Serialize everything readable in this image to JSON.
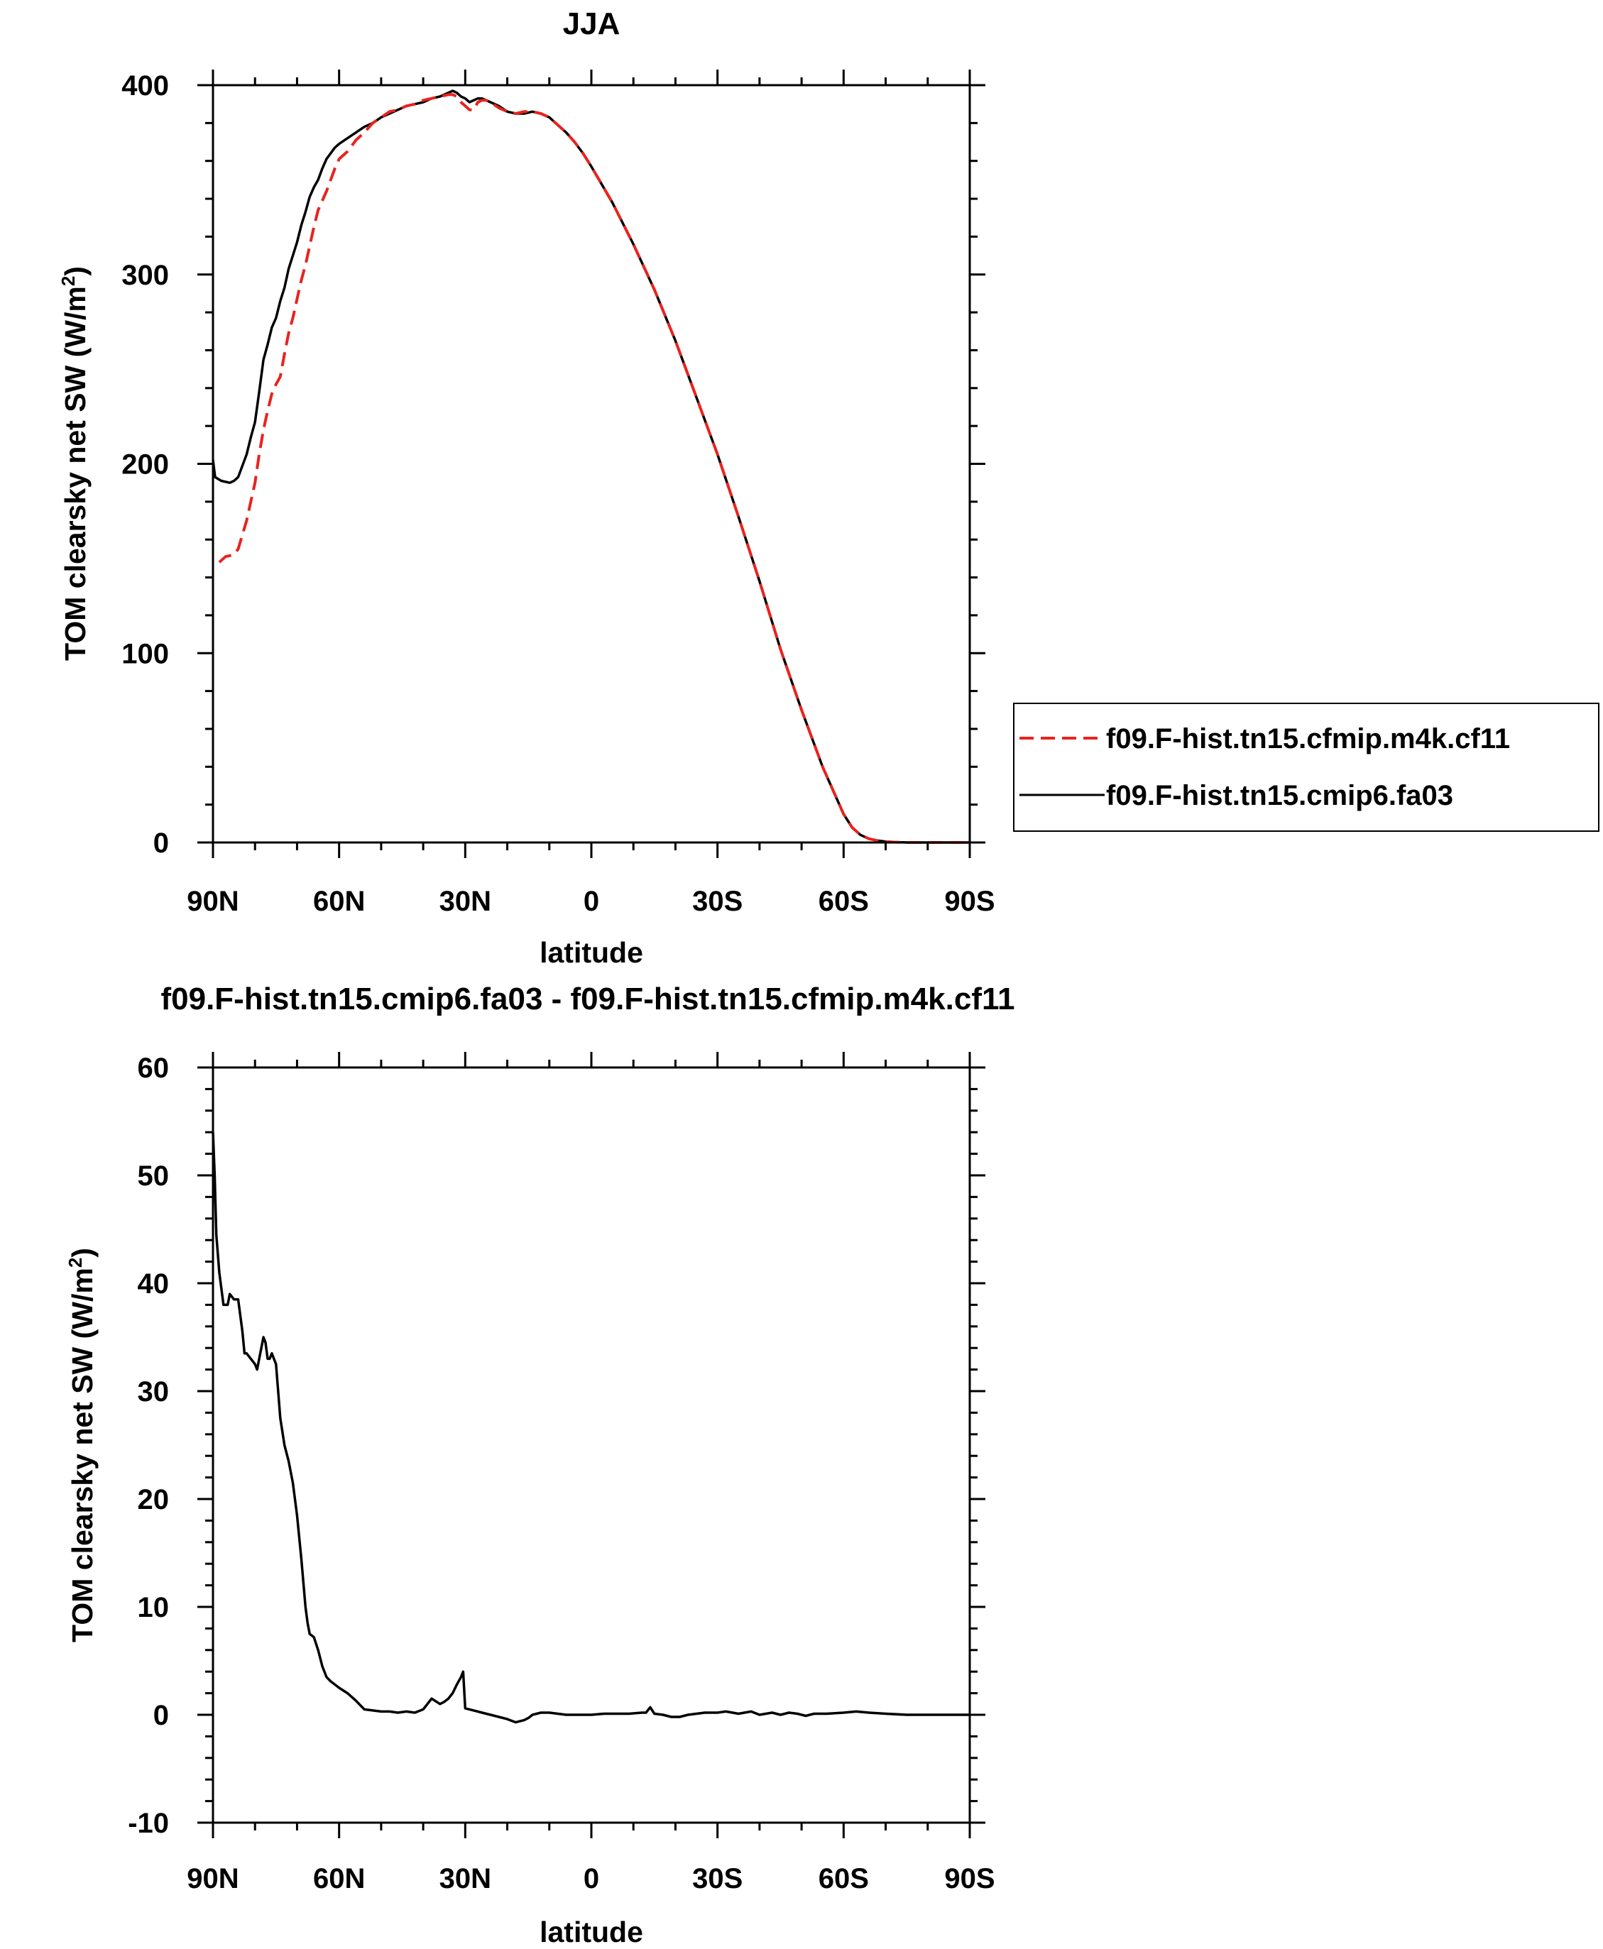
{
  "chart_data": [
    {
      "type": "line",
      "title": "JJA",
      "xlabel": "latitude",
      "ylabel": "TOM clearsky net SW (W/m",
      "ylabel_sup": "2",
      "ylabel_close": ")",
      "xlim": [
        90,
        -90
      ],
      "ylim": [
        0,
        400
      ],
      "xticks": [
        90,
        60,
        30,
        0,
        -30,
        -60,
        -90
      ],
      "xtick_labels": [
        "90N",
        "60N",
        "30N",
        "0",
        "30S",
        "60S",
        "90S"
      ],
      "yticks": [
        0,
        100,
        200,
        300,
        400
      ],
      "ytick_labels": [
        "0",
        "100",
        "200",
        "300",
        "400"
      ],
      "legend_position": "right",
      "series": [
        {
          "name": "f09.F-hist.tn15.cfmip.m4k.cf11",
          "color": "#e8231f",
          "dash": "dashed",
          "x": [
            88.5,
            87,
            85,
            84,
            82,
            81,
            80,
            79,
            78,
            77,
            76,
            75,
            74,
            73,
            72,
            71,
            70,
            69,
            68,
            67,
            66,
            65,
            64,
            63,
            62,
            61,
            60,
            58,
            56,
            54,
            52,
            50,
            48,
            46,
            44,
            42,
            40,
            38,
            36,
            34,
            33,
            32,
            31,
            30,
            29,
            28,
            27,
            26,
            25,
            24,
            22,
            20,
            18,
            16,
            14,
            12,
            10,
            8,
            6,
            4,
            2,
            0,
            -5,
            -10,
            -15,
            -20,
            -25,
            -30,
            -35,
            -40,
            -45,
            -50,
            -55,
            -60,
            -62,
            -64,
            -66,
            -68,
            -70,
            -72,
            -75,
            -78,
            -80,
            -85,
            -90
          ],
          "y": [
            148,
            151,
            152,
            155,
            170,
            180,
            190,
            205,
            218,
            228,
            237,
            242,
            246,
            258,
            269,
            277,
            287,
            297,
            305,
            315,
            325,
            334,
            339,
            344,
            350,
            356,
            361,
            365,
            371,
            375,
            380,
            383,
            386,
            387,
            389,
            390,
            392,
            393,
            394,
            395,
            395,
            394,
            391,
            389,
            387,
            387,
            391,
            392,
            392,
            391,
            388,
            386,
            385,
            386,
            386,
            385,
            383,
            379,
            375,
            370,
            364,
            357,
            338,
            316,
            292,
            265,
            235,
            205,
            172,
            138,
            102,
            70,
            40,
            15,
            8,
            4,
            2,
            1,
            0.5,
            0.2,
            0,
            0,
            0,
            0,
            0
          ]
        },
        {
          "name": "f09.F-hist.tn15.cmip6.fa03",
          "color": "#000000",
          "dash": "solid",
          "x": [
            90,
            89.5,
            88,
            86,
            85,
            84,
            82,
            81,
            80,
            79,
            78,
            77,
            76,
            75,
            74,
            73,
            72,
            71,
            70,
            69,
            68,
            67,
            66,
            65,
            64,
            63,
            62,
            61,
            60,
            58,
            56,
            54,
            52,
            50,
            48,
            46,
            44,
            42,
            40,
            38,
            36,
            34,
            33,
            32,
            31,
            30,
            29,
            28,
            27,
            26,
            25,
            24,
            22,
            20,
            18,
            16,
            14,
            12,
            10,
            8,
            6,
            4,
            2,
            0,
            -5,
            -10,
            -15,
            -20,
            -25,
            -30,
            -35,
            -40,
            -45,
            -50,
            -55,
            -60,
            -62,
            -64,
            -66,
            -68,
            -70,
            -72,
            -75,
            -78,
            -80,
            -85,
            -90
          ],
          "y": [
            202,
            193,
            191,
            190,
            191,
            193,
            205,
            214,
            222,
            238,
            255,
            263,
            272,
            277,
            286,
            293,
            303,
            310,
            317,
            326,
            333,
            341,
            346,
            350,
            356,
            361,
            364,
            367,
            369,
            372,
            375,
            378,
            380,
            383,
            385,
            387,
            389,
            390,
            391,
            393,
            394,
            396,
            397,
            396,
            394,
            393,
            391,
            392,
            393,
            393,
            392,
            391,
            389,
            386,
            385,
            385,
            386,
            385,
            383,
            379,
            375,
            370,
            364,
            357,
            338,
            316,
            292,
            265,
            235,
            205,
            172,
            138,
            102,
            70,
            40,
            15,
            8,
            4,
            2,
            1,
            0.5,
            0.2,
            0,
            0,
            0,
            0,
            0
          ]
        }
      ]
    },
    {
      "type": "line",
      "title": "f09.F-hist.tn15.cmip6.fa03 - f09.F-hist.tn15.cfmip.m4k.cf11",
      "xlabel": "latitude",
      "ylabel": "TOM clearsky net SW (W/m",
      "ylabel_sup": "2",
      "ylabel_close": ")",
      "xlim": [
        90,
        -90
      ],
      "ylim": [
        -10,
        60
      ],
      "xticks": [
        90,
        60,
        30,
        0,
        -30,
        -60,
        -90
      ],
      "xtick_labels": [
        "90N",
        "60N",
        "30N",
        "0",
        "30S",
        "60S",
        "90S"
      ],
      "yticks": [
        -10,
        0,
        10,
        20,
        30,
        40,
        50,
        60
      ],
      "ytick_labels": [
        "-10",
        "0",
        "10",
        "20",
        "30",
        "40",
        "50",
        "60"
      ],
      "series": [
        {
          "color": "#000000",
          "dash": "solid",
          "x": [
            90,
            89.6,
            89.2,
            88.5,
            87.5,
            86.5,
            86,
            85,
            84,
            83,
            82.5,
            82,
            81,
            80,
            79.5,
            79,
            78,
            77.5,
            77,
            76.5,
            76,
            75,
            74,
            73,
            72,
            71,
            70,
            69,
            68,
            67.5,
            67,
            66,
            65,
            64,
            63,
            62,
            61,
            60,
            58,
            56,
            55,
            54,
            52,
            50,
            48,
            46,
            44,
            42,
            40,
            38,
            36,
            35,
            34,
            33,
            32,
            31,
            30.5,
            30,
            29,
            28,
            26,
            24,
            22,
            20,
            18,
            16,
            15,
            14,
            13,
            12,
            10,
            8,
            6,
            4,
            2,
            0,
            -3,
            -6,
            -9,
            -12,
            -13,
            -14,
            -15,
            -17,
            -19,
            -21,
            -23,
            -25,
            -27,
            -30,
            -32,
            -35,
            -38,
            -40,
            -43,
            -45,
            -47,
            -49,
            -51,
            -53,
            -56,
            -60,
            -63,
            -66,
            -70,
            -75,
            -80,
            -85,
            -90
          ],
          "y": [
            54,
            50,
            44.5,
            41,
            38,
            38,
            39,
            38.5,
            38.5,
            35.5,
            33.5,
            33.5,
            33,
            32.5,
            32,
            33,
            35,
            34.5,
            33,
            33,
            33.5,
            32.5,
            27.5,
            25,
            23.5,
            21.5,
            18.5,
            14.5,
            10,
            8.5,
            7.5,
            7.2,
            6,
            4.5,
            3.5,
            3.1,
            2.8,
            2.5,
            2.0,
            1.3,
            0.9,
            0.5,
            0.4,
            0.3,
            0.3,
            0.2,
            0.3,
            0.2,
            0.5,
            1.5,
            1.0,
            1.2,
            1.5,
            2.0,
            2.8,
            3.5,
            4.0,
            0.6,
            0.5,
            0.4,
            0.2,
            0.0,
            -0.2,
            -0.4,
            -0.7,
            -0.5,
            -0.3,
            0.0,
            0.1,
            0.2,
            0.2,
            0.1,
            0.0,
            0.0,
            0.0,
            0.0,
            0.1,
            0.1,
            0.1,
            0.2,
            0.2,
            0.7,
            0.1,
            0.0,
            -0.2,
            -0.2,
            0.0,
            0.1,
            0.2,
            0.2,
            0.3,
            0.1,
            0.3,
            0.0,
            0.2,
            0.0,
            0.2,
            0.1,
            -0.1,
            0.1,
            0.1,
            0.2,
            0.3,
            0.2,
            0.1,
            0.0,
            0.0,
            0.0,
            0.0
          ]
        }
      ]
    }
  ]
}
